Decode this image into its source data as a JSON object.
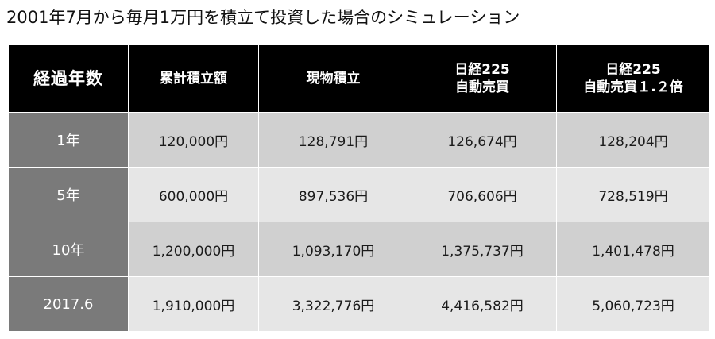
{
  "title": "2001年7月から毎月1万円を積立て投資した場合のシミュレーション",
  "table": {
    "headers": [
      {
        "lines": [
          "経過年数"
        ]
      },
      {
        "lines": [
          "累計積立額"
        ]
      },
      {
        "lines": [
          "現物積立"
        ]
      },
      {
        "lines": [
          "日経225",
          "自動売買"
        ]
      },
      {
        "lines": [
          "日経225",
          "自動売買１.２倍"
        ]
      }
    ],
    "rows": [
      {
        "year": "1年",
        "cells": [
          "120,000円",
          "128,791円",
          "126,674円",
          "128,204円"
        ]
      },
      {
        "year": "5年",
        "cells": [
          "600,000円",
          "897,536円",
          "706,606円",
          "728,519円"
        ]
      },
      {
        "year": "10年",
        "cells": [
          "1,200,000円",
          "1,093,170円",
          "1,375,737円",
          "1,401,478円"
        ]
      },
      {
        "year": "2017.6",
        "cells": [
          "1,910,000円",
          "3,322,776円",
          "4,416,582円",
          "5,060,723円"
        ]
      }
    ]
  },
  "colors": {
    "header_bg": "#000000",
    "header_text": "#ffffff",
    "year_cell_bg": "#7a7a7a",
    "row_dark_bg": "#d0d0d0",
    "row_light_bg": "#e6e6e6"
  }
}
